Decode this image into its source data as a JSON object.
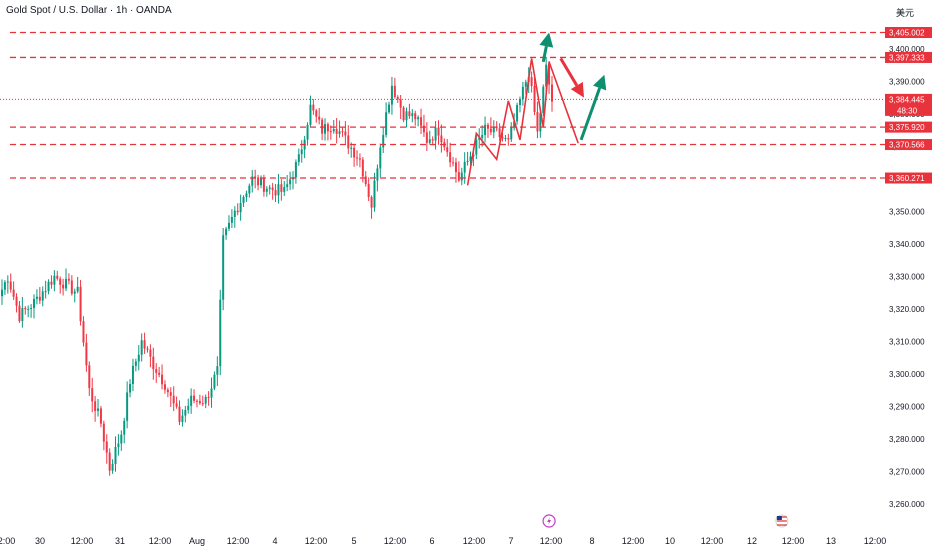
{
  "header": {
    "title": "Gold Spot / U.S. Dollar · 1h · OANDA",
    "currency": "美元"
  },
  "colors": {
    "up": "#089981",
    "down": "#F23645",
    "level": "#E8323C",
    "arrow_up": "#0E8F6F",
    "arrow_down": "#E8323C",
    "axis_text": "#131722",
    "label_text": "#ffffff"
  },
  "chart_data": {
    "type": "candlestick",
    "symbol": "XAUUSD",
    "timeframe": "1h",
    "ylim": [
      3257,
      3409
    ],
    "y_ticks": [
      "3,260.000",
      "3,270.000",
      "3,280.000",
      "3,290.000",
      "3,300.000",
      "3,310.000",
      "3,320.000",
      "3,330.000",
      "3,340.000",
      "3,350.000",
      "3,360.000",
      "3,370.000",
      "3,380.000",
      "3,390.000",
      "3,400.000"
    ],
    "x_ticks": [
      "12:00",
      "30",
      "12:00",
      "31",
      "12:00",
      "Aug",
      "12:00",
      "4",
      "12:00",
      "5",
      "12:00",
      "6",
      "12:00",
      "7",
      "12:00",
      "8",
      "12:00",
      "10",
      "12:00",
      "12",
      "12:00",
      "13",
      "12:00"
    ],
    "key_points": [
      {
        "t": 0,
        "v": 3326
      },
      {
        "t": 2,
        "v": 3330
      },
      {
        "t": 6,
        "v": 3318
      },
      {
        "t": 11,
        "v": 3322
      },
      {
        "t": 18,
        "v": 3330
      },
      {
        "t": 26,
        "v": 3325
      },
      {
        "t": 30,
        "v": 3295
      },
      {
        "t": 34,
        "v": 3285
      },
      {
        "t": 37,
        "v": 3271
      },
      {
        "t": 41,
        "v": 3282
      },
      {
        "t": 44,
        "v": 3298
      },
      {
        "t": 48,
        "v": 3310
      },
      {
        "t": 52,
        "v": 3303
      },
      {
        "t": 56,
        "v": 3297
      },
      {
        "t": 61,
        "v": 3286
      },
      {
        "t": 65,
        "v": 3292
      },
      {
        "t": 70,
        "v": 3292
      },
      {
        "t": 74,
        "v": 3301
      },
      {
        "t": 76,
        "v": 3341
      },
      {
        "t": 80,
        "v": 3350
      },
      {
        "t": 86,
        "v": 3360
      },
      {
        "t": 92,
        "v": 3357
      },
      {
        "t": 97,
        "v": 3356
      },
      {
        "t": 102,
        "v": 3366
      },
      {
        "t": 106,
        "v": 3382
      },
      {
        "t": 110,
        "v": 3375
      },
      {
        "t": 114,
        "v": 3377
      },
      {
        "t": 118,
        "v": 3372
      },
      {
        "t": 123,
        "v": 3366
      },
      {
        "t": 127,
        "v": 3352
      },
      {
        "t": 130,
        "v": 3371
      },
      {
        "t": 134,
        "v": 3389
      },
      {
        "t": 138,
        "v": 3380
      },
      {
        "t": 142,
        "v": 3379
      },
      {
        "t": 146,
        "v": 3372
      },
      {
        "t": 150,
        "v": 3375
      },
      {
        "t": 154,
        "v": 3367
      },
      {
        "t": 157,
        "v": 3360
      },
      {
        "t": 162,
        "v": 3369
      },
      {
        "t": 166,
        "v": 3375
      },
      {
        "t": 170,
        "v": 3374
      },
      {
        "t": 174,
        "v": 3371
      },
      {
        "t": 178,
        "v": 3384
      },
      {
        "t": 181,
        "v": 3393
      },
      {
        "t": 184,
        "v": 3374
      },
      {
        "t": 187,
        "v": 3394
      },
      {
        "t": 189,
        "v": 3384
      }
    ],
    "levels": [
      {
        "value": 3405.002,
        "label": "3,405.002",
        "style": "dashed"
      },
      {
        "value": 3397.333,
        "label": "3,397.333",
        "style": "dashed"
      },
      {
        "value": 3384.445,
        "label": "3,384.445",
        "sublabel": "48:30",
        "style": "dotted"
      },
      {
        "value": 3375.92,
        "label": "3,375.920",
        "style": "dashed"
      },
      {
        "value": 3370.566,
        "label": "3,370.566",
        "style": "dashed"
      },
      {
        "value": 3360.271,
        "label": "3,360.271",
        "style": "dashed"
      }
    ],
    "projection_zigzag_1": [
      {
        "t": 160,
        "v": 3358
      },
      {
        "t": 163,
        "v": 3374
      },
      {
        "t": 170,
        "v": 3366
      },
      {
        "t": 174,
        "v": 3384
      },
      {
        "t": 178,
        "v": 3372
      },
      {
        "t": 182,
        "v": 3397
      },
      {
        "t": 186,
        "v": 3376
      },
      {
        "t": 188,
        "v": 3396
      },
      {
        "t": 198,
        "v": 3371
      }
    ],
    "arrows": [
      {
        "dir": "up",
        "from": {
          "t": 186,
          "v": 3396
        },
        "to": {
          "t": 188,
          "v": 3405
        }
      },
      {
        "dir": "down",
        "from": {
          "t": 192,
          "v": 3397
        },
        "to": {
          "t": 200,
          "v": 3385
        }
      },
      {
        "dir": "up",
        "from": {
          "t": 199,
          "v": 3372
        },
        "to": {
          "t": 207,
          "v": 3392
        }
      }
    ],
    "events": [
      {
        "t": 188,
        "kind": "lightning-event-icon"
      },
      {
        "t": 268,
        "kind": "us-flag-event-icon"
      }
    ]
  }
}
